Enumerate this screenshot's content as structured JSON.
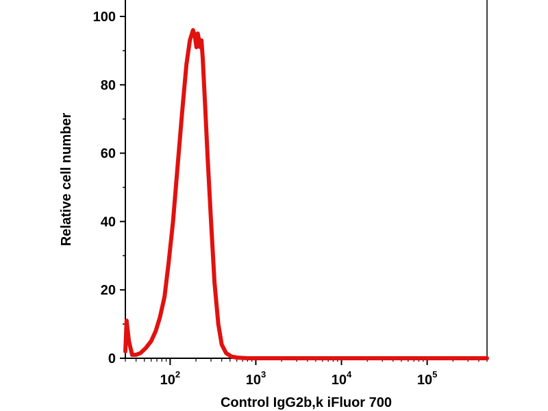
{
  "chart_data": {
    "type": "line",
    "title": "",
    "xlabel": "Control IgG2b,k iFluor 700",
    "ylabel": "Relative cell number",
    "x_scale": "log",
    "xlim": [
      30,
      500000
    ],
    "ylim": [
      0,
      100
    ],
    "y_ticks": [
      {
        "value": 0,
        "label": "0"
      },
      {
        "value": 20,
        "label": "20"
      },
      {
        "value": 40,
        "label": "40"
      },
      {
        "value": 60,
        "label": "60"
      },
      {
        "value": 80,
        "label": "80"
      },
      {
        "value": 100,
        "label": "100"
      }
    ],
    "x_ticks": [
      {
        "value": 100,
        "base": "10",
        "exp": "2"
      },
      {
        "value": 1000,
        "base": "10",
        "exp": "3"
      },
      {
        "value": 10000,
        "base": "10",
        "exp": "4"
      },
      {
        "value": 100000,
        "base": "10",
        "exp": "5"
      }
    ],
    "grid": false,
    "legend": "none",
    "series_color": "#e0120f",
    "series": [
      {
        "x": [
          30,
          31,
          33,
          36,
          40,
          45,
          52,
          60,
          68,
          76,
          86,
          96,
          108,
          122,
          138,
          155,
          170,
          185,
          195,
          203,
          210,
          218,
          225,
          232,
          240,
          255,
          275,
          300,
          330,
          365,
          400,
          450,
          520,
          600,
          800,
          2000,
          10000,
          100000,
          500000
        ],
        "y": [
          2,
          11,
          5,
          1,
          1,
          1.5,
          3,
          5,
          8,
          12,
          18,
          28,
          40,
          56,
          72,
          86,
          93,
          96,
          94,
          91,
          95,
          93,
          91,
          93,
          88,
          75,
          58,
          40,
          22,
          10,
          4,
          1.5,
          0.5,
          0.2,
          0,
          0,
          0,
          0,
          0
        ]
      }
    ]
  }
}
